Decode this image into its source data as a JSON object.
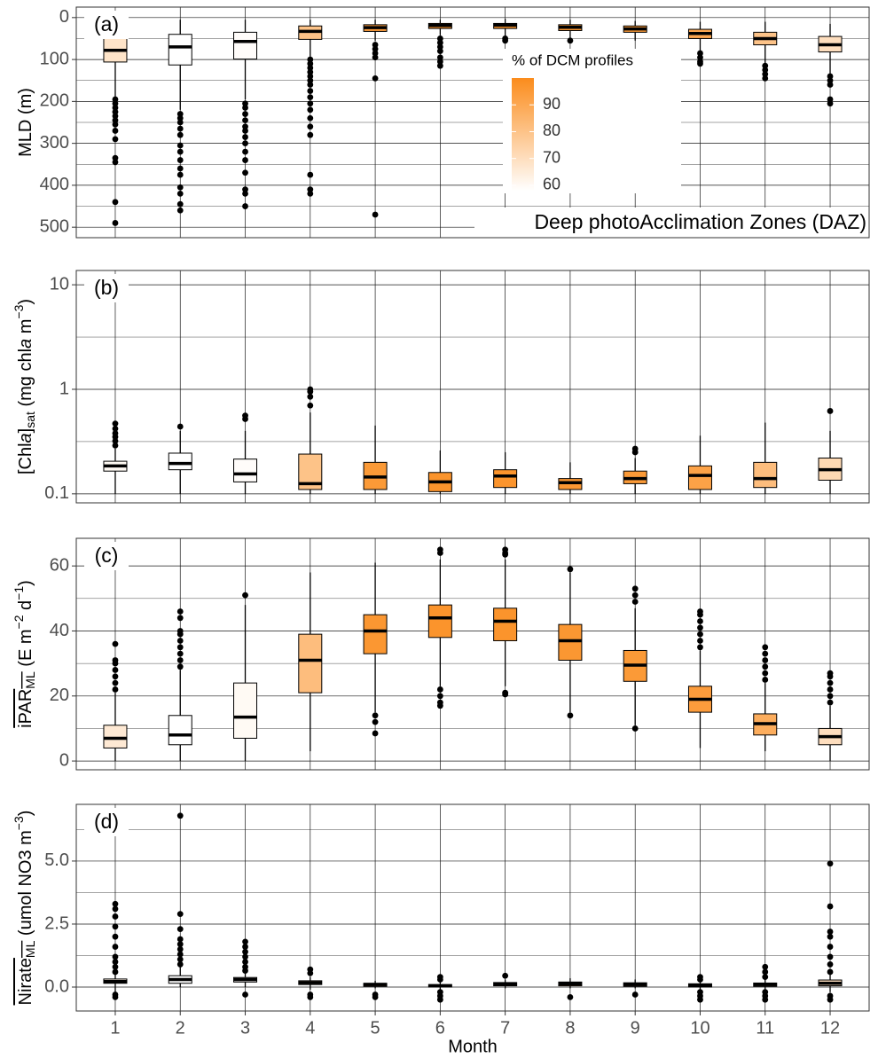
{
  "chart_data": [
    {
      "type": "box",
      "label": "(a)",
      "ylabel": [
        {
          "text": "MLD (m)",
          "style": "normal"
        }
      ],
      "ylim": [
        -25,
        525
      ],
      "reverse": true,
      "yticks": [
        0,
        100,
        200,
        300,
        400,
        500
      ],
      "minor_yticks": [
        50,
        150,
        250,
        350,
        450
      ],
      "grid": true,
      "annotation": "Deep photoAcclimation Zones (DAZ)",
      "colorbar": {
        "title": "% of DCM profiles",
        "range": [
          58,
          100
        ],
        "ticks": [
          60,
          70,
          80,
          90
        ],
        "low_color": "#ffffff",
        "high_color": "#fb8c1c"
      },
      "dcm_percent": [
        68,
        58,
        59,
        80,
        94,
        97,
        97,
        96,
        95,
        90,
        80,
        70
      ],
      "boxes": [
        {
          "low": 5,
          "q1": 47,
          "median": 78,
          "q3": 106,
          "high": 190,
          "outliers": [
            195,
            205,
            215,
            225,
            235,
            245,
            255,
            270,
            290,
            335,
            345,
            440,
            490
          ]
        },
        {
          "low": 5,
          "q1": 40,
          "median": 70,
          "q3": 113,
          "high": 220,
          "outliers": [
            230,
            240,
            250,
            265,
            280,
            305,
            320,
            340,
            360,
            375,
            405,
            420,
            445,
            460
          ]
        },
        {
          "low": 5,
          "q1": 35,
          "median": 57,
          "q3": 99,
          "high": 195,
          "outliers": [
            205,
            215,
            230,
            245,
            260,
            270,
            285,
            300,
            320,
            340,
            370,
            410,
            420,
            450
          ]
        },
        {
          "low": 5,
          "q1": 20,
          "median": 33,
          "q3": 52,
          "high": 98,
          "outliers": [
            100,
            110,
            120,
            130,
            140,
            150,
            160,
            175,
            190,
            205,
            220,
            240,
            260,
            280,
            375,
            410,
            420
          ]
        },
        {
          "low": 5,
          "q1": 17,
          "median": 24,
          "q3": 33,
          "high": 55,
          "outliers": [
            65,
            75,
            85,
            95,
            145,
            470
          ]
        },
        {
          "low": 5,
          "q1": 14,
          "median": 19,
          "q3": 26,
          "high": 42,
          "outliers": [
            50,
            60,
            70,
            80,
            95,
            105,
            115
          ]
        },
        {
          "low": 3,
          "q1": 14,
          "median": 18,
          "q3": 26,
          "high": 45,
          "outliers": [
            50,
            55
          ]
        },
        {
          "low": 5,
          "q1": 17,
          "median": 23,
          "q3": 31,
          "high": 50,
          "outliers": [
            55
          ]
        },
        {
          "low": 8,
          "q1": 20,
          "median": 27,
          "q3": 35,
          "high": 55,
          "outliers": []
        },
        {
          "low": 10,
          "q1": 28,
          "median": 38,
          "q3": 50,
          "high": 80,
          "outliers": [
            85,
            95,
            105,
            110
          ]
        },
        {
          "low": 10,
          "q1": 35,
          "median": 50,
          "q3": 65,
          "high": 110,
          "outliers": [
            115,
            125,
            135,
            145
          ]
        },
        {
          "low": 15,
          "q1": 45,
          "median": 65,
          "q3": 82,
          "high": 135,
          "outliers": [
            140,
            150,
            160,
            195,
            205
          ]
        }
      ]
    },
    {
      "type": "box",
      "label": "(b)",
      "ylabel": [
        {
          "text": "[Chl",
          "style": "normal"
        },
        {
          "text": "a",
          "style": "italic"
        },
        {
          "text": "]",
          "style": "normal"
        },
        {
          "text": "sat",
          "style": "sub"
        },
        {
          "text": " (mg chl",
          "style": "normal"
        },
        {
          "text": "a",
          "style": "italic"
        },
        {
          "text": " m",
          "style": "normal"
        },
        {
          "text": "−3",
          "style": "sup"
        },
        {
          "text": ")",
          "style": "normal"
        }
      ],
      "log": true,
      "ylim": [
        0.082,
        13.7
      ],
      "yticks": [
        0.1,
        1,
        10
      ],
      "minor_yticks": [
        0.3162,
        3.162
      ],
      "grid": true,
      "dcm_percent": [
        60,
        58,
        59,
        80,
        95,
        97,
        97,
        96,
        95,
        92,
        82,
        72
      ],
      "boxes": [
        {
          "low": 0.1,
          "q1": 0.165,
          "median": 0.185,
          "q3": 0.205,
          "high": 0.27,
          "outliers": [
            0.29,
            0.32,
            0.35,
            0.38,
            0.42,
            0.47
          ]
        },
        {
          "low": 0.1,
          "q1": 0.17,
          "median": 0.195,
          "q3": 0.245,
          "high": 0.4,
          "outliers": [
            0.44
          ]
        },
        {
          "low": 0.1,
          "q1": 0.13,
          "median": 0.155,
          "q3": 0.215,
          "high": 0.4,
          "outliers": [
            0.52,
            0.56
          ]
        },
        {
          "low": 0.1,
          "q1": 0.11,
          "median": 0.125,
          "q3": 0.24,
          "high": 0.6,
          "outliers": [
            0.7,
            0.85,
            0.95,
            1.0
          ]
        },
        {
          "low": 0.1,
          "q1": 0.11,
          "median": 0.145,
          "q3": 0.2,
          "high": 0.45,
          "outliers": []
        },
        {
          "low": 0.1,
          "q1": 0.105,
          "median": 0.13,
          "q3": 0.16,
          "high": 0.26,
          "outliers": []
        },
        {
          "low": 0.1,
          "q1": 0.115,
          "median": 0.148,
          "q3": 0.17,
          "high": 0.25,
          "outliers": []
        },
        {
          "low": 0.1,
          "q1": 0.11,
          "median": 0.128,
          "q3": 0.14,
          "high": 0.2,
          "outliers": []
        },
        {
          "low": 0.1,
          "q1": 0.125,
          "median": 0.14,
          "q3": 0.165,
          "high": 0.22,
          "outliers": [
            0.25,
            0.27
          ]
        },
        {
          "low": 0.1,
          "q1": 0.11,
          "median": 0.15,
          "q3": 0.185,
          "high": 0.36,
          "outliers": []
        },
        {
          "low": 0.1,
          "q1": 0.115,
          "median": 0.14,
          "q3": 0.2,
          "high": 0.48,
          "outliers": []
        },
        {
          "low": 0.1,
          "q1": 0.135,
          "median": 0.17,
          "q3": 0.22,
          "high": 0.4,
          "outliers": [
            0.62
          ]
        }
      ]
    },
    {
      "type": "box",
      "label": "(c)",
      "ylabel": [
        {
          "text": "iPAR",
          "style": "overline"
        },
        {
          "text": "ML",
          "style": "sub-overline"
        },
        {
          "text": " (E m",
          "style": "normal"
        },
        {
          "text": "−2",
          "style": "sup"
        },
        {
          "text": " d",
          "style": "normal"
        },
        {
          "text": "−1",
          "style": "sup"
        },
        {
          "text": ")",
          "style": "normal"
        }
      ],
      "ylim": [
        -2.7,
        68.5
      ],
      "yticks": [
        0,
        20,
        40,
        60
      ],
      "minor_yticks": [
        10,
        30,
        50
      ],
      "grid": true,
      "dcm_percent": [
        66,
        58,
        60,
        82,
        96,
        97,
        97,
        96,
        95,
        94,
        88,
        70
      ],
      "boxes": [
        {
          "low": 0,
          "q1": 4,
          "median": 7,
          "q3": 11,
          "high": 21,
          "outliers": [
            22,
            24,
            26,
            28,
            30,
            31,
            36
          ]
        },
        {
          "low": 0,
          "q1": 5,
          "median": 8,
          "q3": 14,
          "high": 28,
          "outliers": [
            29,
            31,
            33,
            35,
            37,
            39,
            40,
            44,
            46
          ]
        },
        {
          "low": 0,
          "q1": 7,
          "median": 13.5,
          "q3": 24,
          "high": 48,
          "outliers": [
            51
          ]
        },
        {
          "low": 3,
          "q1": 21,
          "median": 31,
          "q3": 39,
          "high": 58,
          "outliers": []
        },
        {
          "low": 15,
          "q1": 33,
          "median": 40,
          "q3": 45,
          "high": 61,
          "outliers": [
            14,
            12,
            8.5
          ]
        },
        {
          "low": 23,
          "q1": 38,
          "median": 44,
          "q3": 48,
          "high": 62,
          "outliers": [
            22,
            20,
            18,
            17,
            64,
            65
          ]
        },
        {
          "low": 23,
          "q1": 37,
          "median": 43,
          "q3": 47,
          "high": 62,
          "outliers": [
            21,
            20.5,
            63.5,
            64,
            65
          ]
        },
        {
          "low": 15,
          "q1": 31,
          "median": 37,
          "q3": 42,
          "high": 58,
          "outliers": [
            14,
            59
          ]
        },
        {
          "low": 11,
          "q1": 24.5,
          "median": 29.5,
          "q3": 34,
          "high": 47,
          "outliers": [
            10,
            49,
            51,
            53
          ]
        },
        {
          "low": 4,
          "q1": 15,
          "median": 19,
          "q3": 23,
          "high": 34,
          "outliers": [
            35,
            37,
            39,
            41,
            43,
            45,
            46
          ]
        },
        {
          "low": 3,
          "q1": 8,
          "median": 11.5,
          "q3": 14.5,
          "high": 24,
          "outliers": [
            25,
            27,
            29,
            31,
            33,
            35
          ]
        },
        {
          "low": 0,
          "q1": 5,
          "median": 7.5,
          "q3": 10,
          "high": 17,
          "outliers": [
            18,
            20,
            22,
            24,
            26,
            27
          ]
        }
      ]
    },
    {
      "type": "box",
      "label": "(d)",
      "ylabel": [
        {
          "text": "Nirate",
          "style": "overline"
        },
        {
          "text": "ML",
          "style": "sub-overline"
        },
        {
          "text": " (umol NO3 m",
          "style": "normal"
        },
        {
          "text": "−3",
          "style": "sup"
        },
        {
          "text": ")",
          "style": "normal"
        }
      ],
      "ylim": [
        -0.95,
        7.25
      ],
      "yticks": [
        {
          "value": 0,
          "label": "0.0"
        },
        2.5,
        {
          "value": 5,
          "label": "5.0"
        }
      ],
      "minor_yticks": [
        1.25,
        3.75,
        6.25
      ],
      "grid": true,
      "xlabel": "Month",
      "categories": [
        "1",
        "2",
        "3",
        "4",
        "5",
        "6",
        "7",
        "8",
        "9",
        "10",
        "11",
        "12"
      ],
      "dcm_percent": [
        62,
        58,
        59,
        80,
        95,
        97,
        97,
        96,
        95,
        92,
        84,
        70
      ],
      "boxes": [
        {
          "low": -0.2,
          "q1": 0.15,
          "median": 0.22,
          "q3": 0.32,
          "high": 0.5,
          "outliers": [
            -0.4,
            -0.3,
            0.6,
            0.8,
            1.0,
            1.2,
            1.6,
            2.0,
            2.4,
            2.8,
            3.1,
            3.3
          ]
        },
        {
          "low": 0.0,
          "q1": 0.15,
          "median": 0.3,
          "q3": 0.45,
          "high": 0.8,
          "outliers": [
            0.9,
            1.1,
            1.3,
            1.5,
            1.7,
            1.9,
            2.3,
            2.9,
            6.8
          ]
        },
        {
          "low": 0.0,
          "q1": 0.2,
          "median": 0.3,
          "q3": 0.38,
          "high": 0.6,
          "outliers": [
            -0.3,
            0.65,
            0.8,
            1.0,
            1.2,
            1.4,
            1.6,
            1.8
          ]
        },
        {
          "low": -0.1,
          "q1": 0.1,
          "median": 0.17,
          "q3": 0.25,
          "high": 0.4,
          "outliers": [
            -0.4,
            -0.3,
            0.55,
            0.7
          ]
        },
        {
          "low": -0.05,
          "q1": 0.03,
          "median": 0.1,
          "q3": 0.15,
          "high": 0.25,
          "outliers": [
            -0.4,
            -0.3
          ]
        },
        {
          "low": -0.1,
          "q1": 0.0,
          "median": 0.05,
          "q3": 0.1,
          "high": 0.2,
          "outliers": [
            -0.5,
            -0.35,
            -0.2,
            0.3,
            0.4
          ]
        },
        {
          "low": -0.05,
          "q1": 0.05,
          "median": 0.12,
          "q3": 0.18,
          "high": 0.3,
          "outliers": [
            0.45
          ]
        },
        {
          "low": -0.05,
          "q1": 0.05,
          "median": 0.13,
          "q3": 0.2,
          "high": 0.35,
          "outliers": [
            -0.4
          ]
        },
        {
          "low": -0.05,
          "q1": 0.03,
          "median": 0.1,
          "q3": 0.17,
          "high": 0.3,
          "outliers": [
            -0.3
          ]
        },
        {
          "low": -0.1,
          "q1": 0.0,
          "median": 0.07,
          "q3": 0.13,
          "high": 0.25,
          "outliers": [
            -0.5,
            -0.35,
            -0.2,
            0.3,
            0.4
          ]
        },
        {
          "low": -0.1,
          "q1": 0.03,
          "median": 0.1,
          "q3": 0.16,
          "high": 0.3,
          "outliers": [
            -0.5,
            -0.35,
            -0.2,
            0.4,
            0.6,
            0.8
          ]
        },
        {
          "low": -0.2,
          "q1": 0.05,
          "median": 0.15,
          "q3": 0.28,
          "high": 0.5,
          "outliers": [
            -0.5,
            -0.35,
            0.6,
            0.9,
            1.2,
            1.6,
            2.0,
            2.2,
            3.2,
            4.9
          ]
        }
      ]
    }
  ]
}
